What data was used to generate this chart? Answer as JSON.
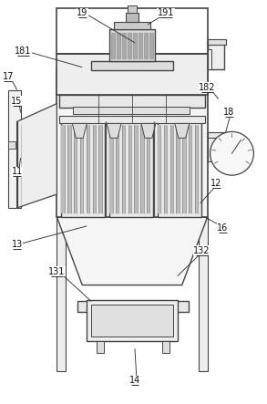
{
  "figsize": [
    2.93,
    4.43
  ],
  "dpi": 100,
  "bg_color": "#ffffff",
  "lc": "#444444",
  "fc_light": "#f2f2f2",
  "fc_mid": "#e0e0e0",
  "fc_dark": "#aaaaaa",
  "fc_filter": "#c8c8c8"
}
